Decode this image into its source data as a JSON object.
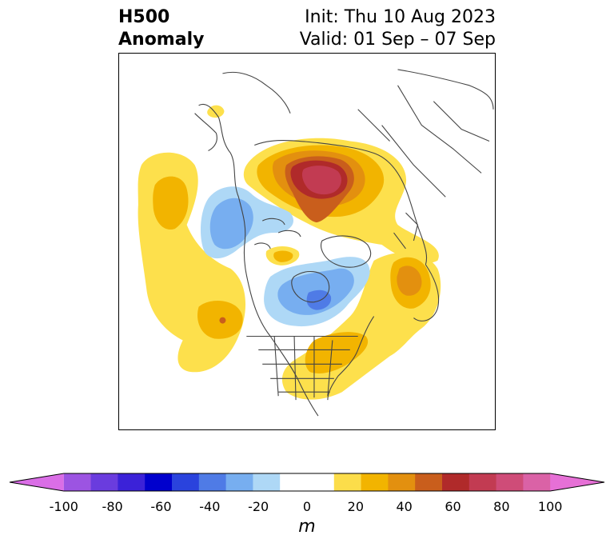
{
  "header": {
    "title_line1": "H500",
    "title_line2": "Anomaly",
    "init": "Init: Thu 10 Aug 2023",
    "valid": "Valid: 01 Sep – 07 Sep"
  },
  "colorbar": {
    "ticks": [
      "-100",
      "-80",
      "-60",
      "-40",
      "-20",
      "0",
      "20",
      "40",
      "60",
      "80",
      "100"
    ],
    "unit": "m",
    "colors": [
      "#da6ee6",
      "#9c54e2",
      "#6a3cde",
      "#3b22d8",
      "#0000cd",
      "#2a43dd",
      "#4f7be6",
      "#77aef0",
      "#aed8f6",
      "#ffffff",
      "#ffffff",
      "#fcdd4a",
      "#f2b400",
      "#e3900f",
      "#c95e1c",
      "#b02a2a",
      "#c23b52",
      "#cf4c78",
      "#da62a6",
      "#e670d6"
    ]
  },
  "palette": {
    "pos1": "#fde04c",
    "pos2": "#f2b400",
    "pos3": "#e3900f",
    "pos4": "#c95e1c",
    "pos5": "#b02a2a",
    "pos6": "#c23b52",
    "neg1": "#aed8f6",
    "neg2": "#77aef0",
    "neg3": "#4f7be6",
    "neg4": "#2a43dd",
    "coast": "#444444"
  }
}
